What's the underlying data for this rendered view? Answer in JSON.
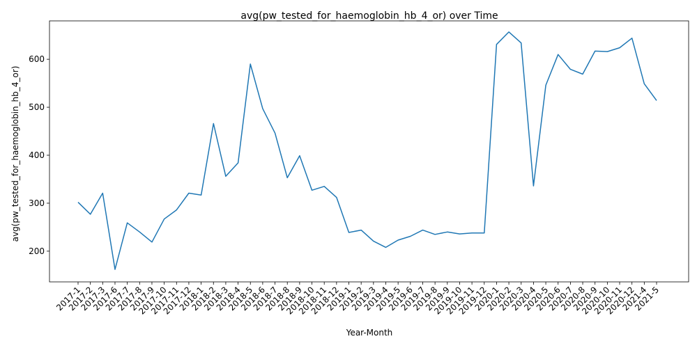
{
  "chart_data": {
    "type": "line",
    "title": "avg(pw_tested_for_haemoglobin_hb_4_or) over Time",
    "xlabel": "Year-Month",
    "ylabel": "avg(pw_tested_for_haemoglobin_hb_4_or)",
    "ylim": [
      136,
      680
    ],
    "yticks": [
      200,
      300,
      400,
      500,
      600
    ],
    "grid": false,
    "legend": "none",
    "line_color": "#1f77b4",
    "categories": [
      "2017-1",
      "2017-2",
      "2017-3",
      "2017-6",
      "2017-7",
      "2017-8",
      "2017-9",
      "2017-10",
      "2017-11",
      "2017-12",
      "2018-1",
      "2018-2",
      "2018-3",
      "2018-4",
      "2018-5",
      "2018-6",
      "2018-7",
      "2018-8",
      "2018-9",
      "2018-10",
      "2018-11",
      "2018-12",
      "2019-1",
      "2019-2",
      "2019-3",
      "2019-4",
      "2019-5",
      "2019-6",
      "2019-7",
      "2019-8",
      "2019-9",
      "2019-10",
      "2019-11",
      "2019-12",
      "2020-1",
      "2020-2",
      "2020-3",
      "2020-4",
      "2020-5",
      "2020-6",
      "2020-7",
      "2020-8",
      "2020-9",
      "2020-10",
      "2020-11",
      "2020-12",
      "2021-4",
      "2021-5"
    ],
    "values": [
      302,
      277,
      321,
      162,
      259,
      240,
      219,
      267,
      286,
      321,
      317,
      466,
      356,
      384,
      590,
      497,
      446,
      353,
      399,
      327,
      335,
      312,
      239,
      244,
      221,
      208,
      223,
      231,
      244,
      235,
      240,
      236,
      238,
      238,
      631,
      657,
      634,
      336,
      546,
      610,
      579,
      569,
      617,
      616,
      624,
      644,
      549,
      514
    ]
  }
}
